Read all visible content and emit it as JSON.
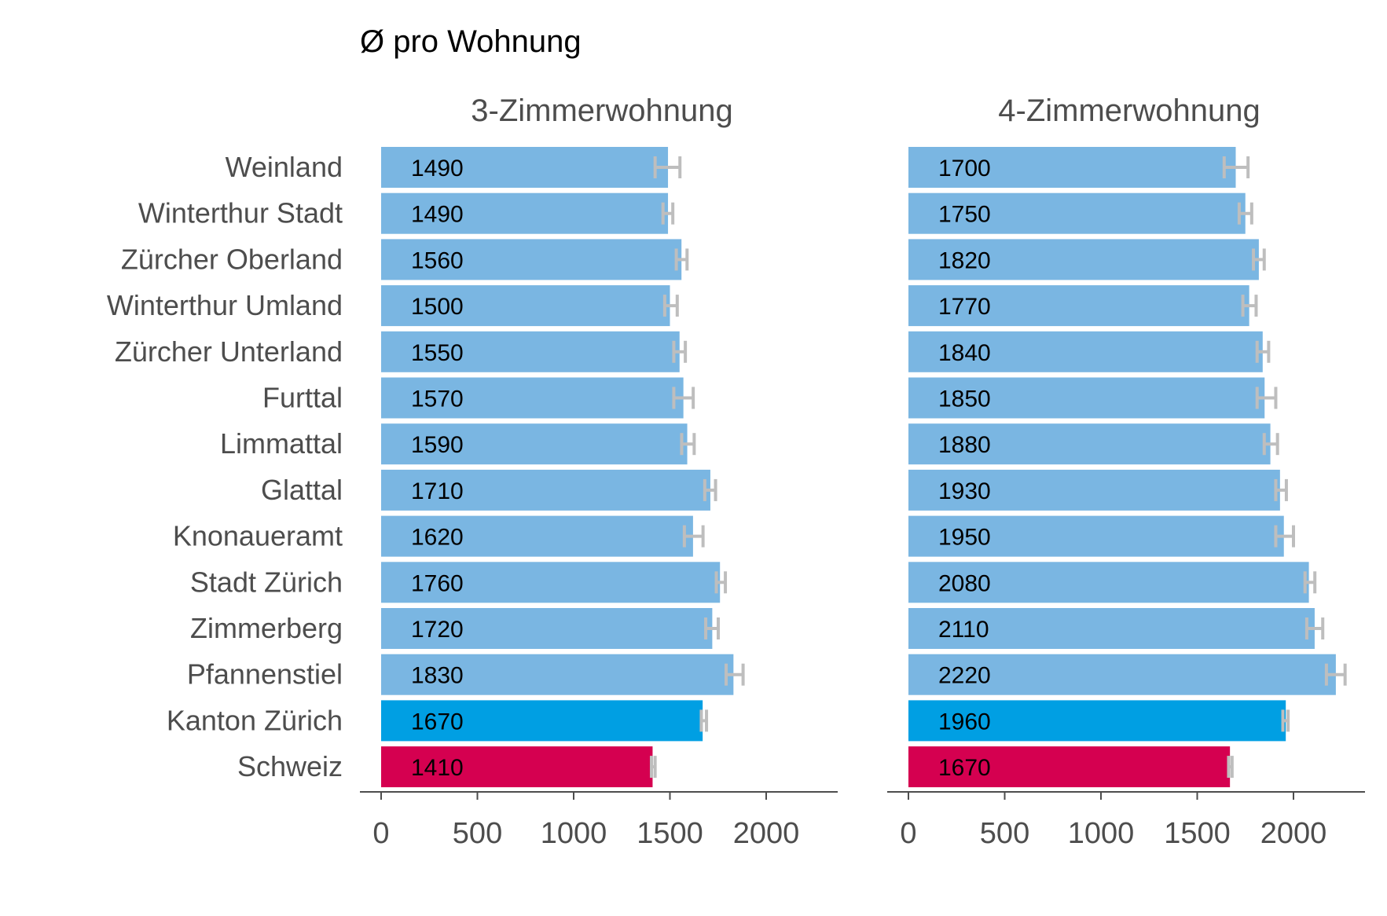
{
  "chart_data": {
    "type": "bar",
    "orientation": "horizontal",
    "title": "Ø pro Wohnung",
    "categories": [
      "Weinland",
      "Winterthur Stadt",
      "Zürcher Oberland",
      "Winterthur Umland",
      "Zürcher Unterland",
      "Furttal",
      "Limmattal",
      "Glattal",
      "Knonaueramt",
      "Stadt Zürich",
      "Zimmerberg",
      "Pfannenstiel",
      "Kanton Zürich",
      "Schweiz"
    ],
    "xlim": [
      0,
      2350
    ],
    "xticks": [
      0,
      500,
      1000,
      1500,
      2000
    ],
    "grid": false,
    "colors": {
      "default": "#7ab6e2",
      "Kanton Zürich": "#009fe3",
      "Schweiz": "#d50050",
      "error_bar": "#bebebe",
      "text": "#4d4d4d"
    },
    "panels": [
      {
        "title": "3-Zimmerwohnung",
        "values": [
          1490,
          1490,
          1560,
          1500,
          1550,
          1570,
          1590,
          1710,
          1620,
          1760,
          1720,
          1830,
          1670,
          1410
        ],
        "error_low": [
          1423,
          1464,
          1533,
          1473,
          1520,
          1520,
          1561,
          1681,
          1575,
          1741,
          1686,
          1792,
          1663,
          1404
        ],
        "error_high": [
          1552,
          1515,
          1589,
          1538,
          1580,
          1621,
          1626,
          1737,
          1672,
          1788,
          1751,
          1880,
          1690,
          1423
        ]
      },
      {
        "title": "4-Zimmerwohnung",
        "values": [
          1700,
          1750,
          1820,
          1770,
          1840,
          1850,
          1880,
          1930,
          1950,
          2080,
          2110,
          2220,
          1960,
          1670
        ],
        "error_low": [
          1640,
          1718,
          1792,
          1737,
          1811,
          1811,
          1848,
          1908,
          1908,
          2060,
          2069,
          2171,
          1945,
          1663
        ],
        "error_high": [
          1764,
          1783,
          1848,
          1806,
          1871,
          1908,
          1917,
          1963,
          2000,
          2111,
          2152,
          2268,
          1972,
          1681
        ]
      }
    ]
  }
}
